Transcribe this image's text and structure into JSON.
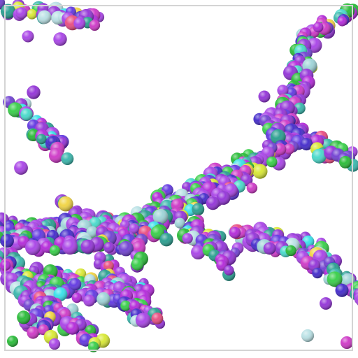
{
  "scene": {
    "background": "#ffffff",
    "frame_color": "#d4d4d4",
    "seed": 7331,
    "palette": [
      "#8e2ad6",
      "#a53be6",
      "#b01fd8",
      "#cc2fc4",
      "#3a20c8",
      "#5a2ee0",
      "#1f9a8a",
      "#2fb3a8",
      "#2ecc40",
      "#1eb82e",
      "#9ad2d6",
      "#b6e0e4",
      "#d7e82a",
      "#f0d23a",
      "#e8447a",
      "#2ee0e8",
      "#3fd8c8",
      "#6a38d0"
    ],
    "palette_weights": [
      18,
      18,
      10,
      10,
      8,
      8,
      7,
      5,
      8,
      6,
      3,
      2,
      3,
      2,
      2,
      2,
      2,
      6
    ]
  }
}
